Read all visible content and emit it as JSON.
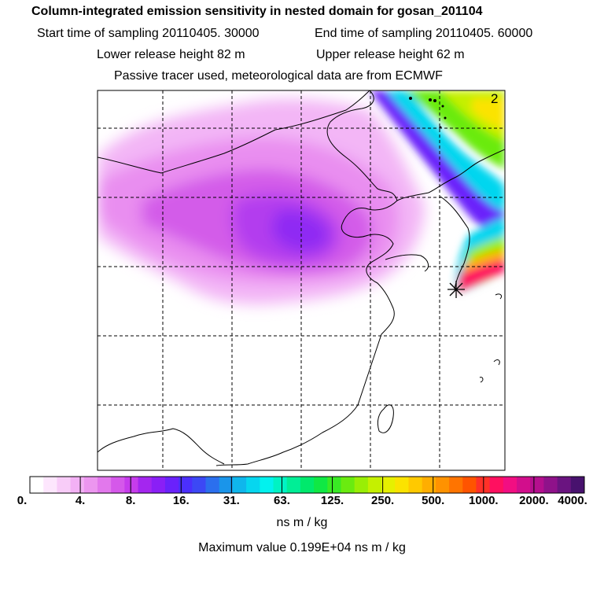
{
  "header": {
    "title": "Column-integrated emission sensitivity in nested domain for gosan_201104",
    "start_time": "Start time of sampling 20110405. 30000",
    "end_time": "End time of sampling 20110405. 60000",
    "lower_release": "Lower release height   82 m",
    "upper_release": "Upper release height   62 m",
    "tracer_note": "Passive tracer used, meteorological data are from ECMWF"
  },
  "map": {
    "panel_number": "2",
    "receptor_marker": "asterisk-icon"
  },
  "colorbar": {
    "ticks": [
      "0.",
      "4.",
      "8.",
      "16.",
      "31.",
      "63.",
      "125.",
      "250.",
      "500.",
      "1000.",
      "2000.",
      "4000."
    ],
    "colors": [
      "#ffffff",
      "#fde6fd",
      "#f8ccf8",
      "#f3b1f5",
      "#ec96ef",
      "#e278ec",
      "#d558ea",
      "#c63cec",
      "#a426ef",
      "#8a1ff6",
      "#6a22fb",
      "#4b2ffc",
      "#3c48f5",
      "#2b6fee",
      "#1a95ea",
      "#0fb6ec",
      "#06d6ef",
      "#02f2ee",
      "#00f3c4",
      "#00ee96",
      "#00e96c",
      "#10e844",
      "#39ea24",
      "#6aeb10",
      "#99ee05",
      "#c5f000",
      "#e6f000",
      "#fbe300",
      "#ffc900",
      "#ffae00",
      "#ff9200",
      "#ff7400",
      "#ff5400",
      "#ff3128",
      "#ff1060",
      "#f20e82",
      "#d20e8c",
      "#b40f8e",
      "#8f128a",
      "#6a1480",
      "#48126e"
    ],
    "units": "ns m / kg"
  },
  "footer": {
    "max_value": "Maximum value  0.199E+04 ns m / kg"
  }
}
